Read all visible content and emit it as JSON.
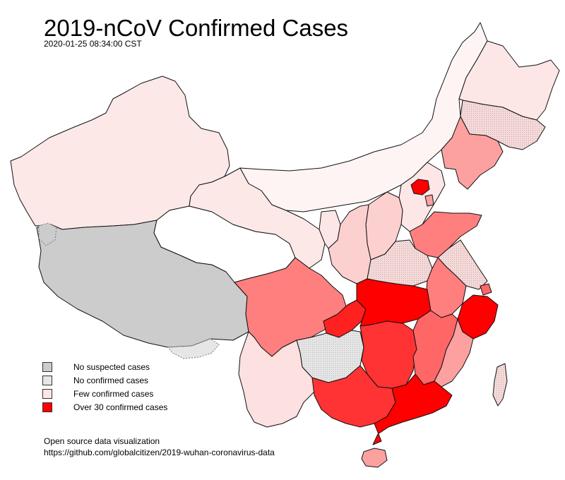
{
  "title": "2019-nCoV Confirmed Cases",
  "timestamp": "2020-01-25 08:34:00 CST",
  "colors": {
    "no_suspected": "#cccccc",
    "no_confirmed": "#e6e6e6",
    "few_confirmed": "#fde6e6",
    "over_30": "#ff0000",
    "border": "#111111"
  },
  "legend": [
    {
      "label": "No suspected cases",
      "color": "#cccccc"
    },
    {
      "label": "No confirmed cases",
      "color": "#e6e6e6"
    },
    {
      "label": "Few confirmed cases",
      "color": "#fde6e6"
    },
    {
      "label": "Over 30 confirmed cases",
      "color": "#ff0000"
    }
  ],
  "credit": {
    "line1": "Open source data visualization",
    "line2": "https://github.com/globalcitizen/2019-wuhan-coronavirus-data"
  }
}
